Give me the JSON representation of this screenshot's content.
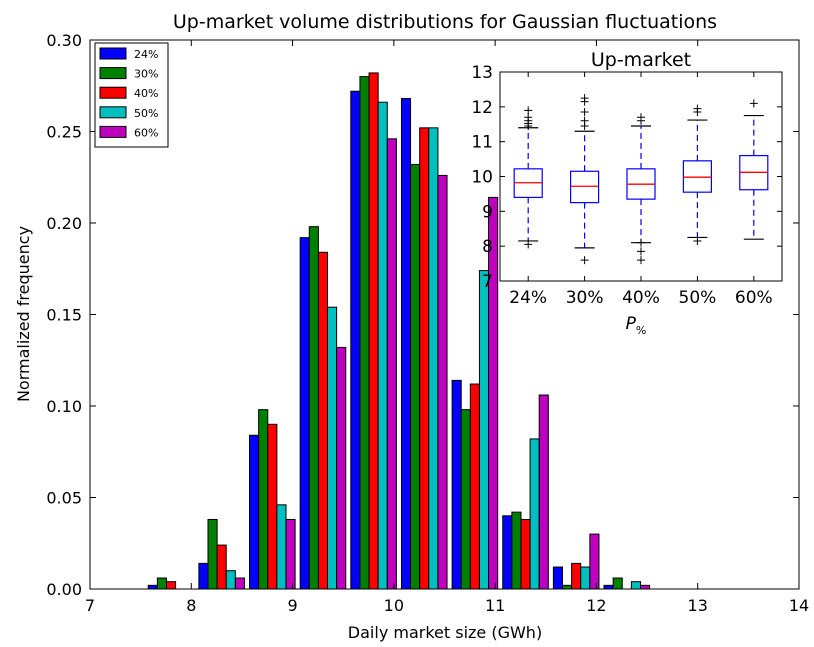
{
  "chart_data": [
    {
      "type": "bar",
      "title": "Up-market volume distributions for Gaussian fluctuations",
      "xlabel": "Daily market size (GWh)",
      "ylabel": "Normalized frequency",
      "xlim": [
        7,
        14
      ],
      "ylim": [
        0,
        0.3
      ],
      "xticks": [
        "7",
        "8",
        "9",
        "10",
        "11",
        "12",
        "13",
        "14"
      ],
      "yticks": [
        "0.00",
        "0.05",
        "0.10",
        "0.15",
        "0.20",
        "0.25",
        "0.30"
      ],
      "bin_centers": [
        7.8,
        8.3,
        8.8,
        9.3,
        9.8,
        10.3,
        10.8,
        11.3,
        11.8,
        12.3
      ],
      "grid": false,
      "legend_position": "top-left",
      "series": [
        {
          "name": "24%",
          "color": "#0000ff",
          "values": [
            0.002,
            0.014,
            0.084,
            0.192,
            0.272,
            0.268,
            0.114,
            0.04,
            0.012,
            0.002
          ]
        },
        {
          "name": "30%",
          "color": "#008000",
          "values": [
            0.006,
            0.038,
            0.098,
            0.198,
            0.28,
            0.232,
            0.098,
            0.042,
            0.002,
            0.006
          ]
        },
        {
          "name": "40%",
          "color": "#ff0000",
          "values": [
            0.004,
            0.024,
            0.09,
            0.184,
            0.282,
            0.252,
            0.112,
            0.038,
            0.014,
            0.0
          ]
        },
        {
          "name": "50%",
          "color": "#00bfbf",
          "values": [
            0.0,
            0.01,
            0.046,
            0.154,
            0.266,
            0.252,
            0.174,
            0.082,
            0.012,
            0.004
          ]
        },
        {
          "name": "60%",
          "color": "#bf00bf",
          "values": [
            0.0,
            0.006,
            0.038,
            0.132,
            0.246,
            0.226,
            0.214,
            0.106,
            0.03,
            0.002
          ]
        }
      ]
    },
    {
      "type": "box",
      "title": "Up-market",
      "xlabel": "P_%",
      "xlabel_main": "P",
      "xlabel_sub": "%",
      "ylim": [
        7,
        13
      ],
      "yticks": [
        "7",
        "8",
        "9",
        "10",
        "11",
        "12",
        "13"
      ],
      "categories": [
        "24%",
        "30%",
        "40%",
        "50%",
        "60%"
      ],
      "box_color": "#0000ff",
      "median_color": "#ff0000",
      "boxes": [
        {
          "q1": 9.4,
          "median": 9.82,
          "q3": 10.22,
          "whisker_low": 8.15,
          "whisker_high": 11.4,
          "outliers": [
            8.05,
            11.45,
            11.52,
            11.6,
            11.7,
            11.9
          ]
        },
        {
          "q1": 9.25,
          "median": 9.72,
          "q3": 10.15,
          "whisker_low": 7.95,
          "whisker_high": 11.3,
          "outliers": [
            7.6,
            11.45,
            11.6,
            11.85,
            12.15,
            12.25
          ]
        },
        {
          "q1": 9.35,
          "median": 9.78,
          "q3": 10.22,
          "whisker_low": 8.1,
          "whisker_high": 11.45,
          "outliers": [
            7.6,
            7.85,
            8.1,
            11.6,
            11.7
          ]
        },
        {
          "q1": 9.55,
          "median": 9.98,
          "q3": 10.45,
          "whisker_low": 8.25,
          "whisker_high": 11.62,
          "outliers": [
            8.15,
            11.85,
            11.95
          ]
        },
        {
          "q1": 9.62,
          "median": 10.12,
          "q3": 10.6,
          "whisker_low": 8.2,
          "whisker_high": 11.75,
          "outliers": [
            12.1
          ]
        }
      ]
    }
  ]
}
